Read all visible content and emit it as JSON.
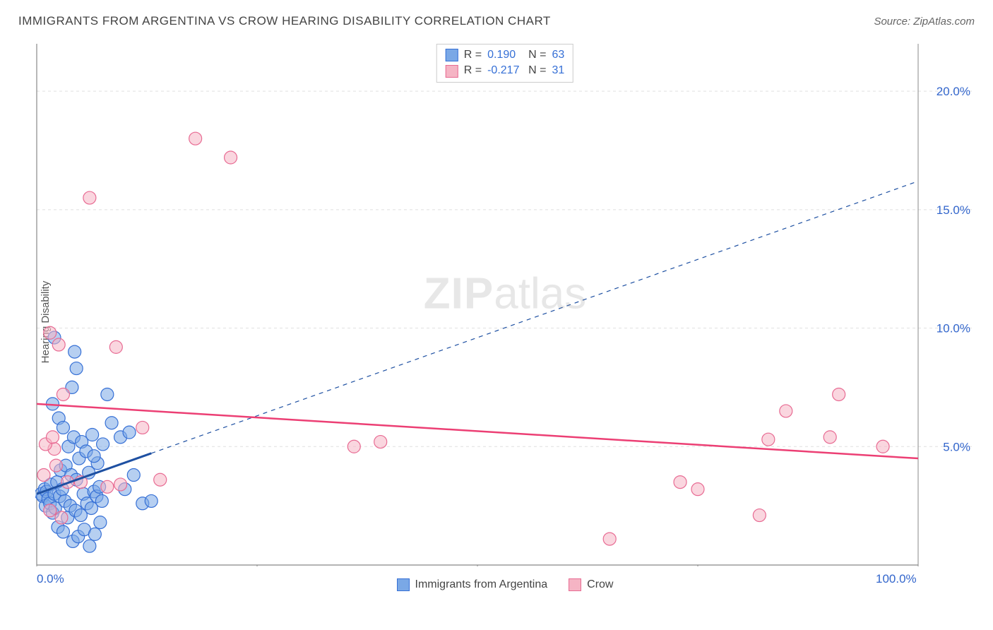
{
  "title": "IMMIGRANTS FROM ARGENTINA VS CROW HEARING DISABILITY CORRELATION CHART",
  "source": "Source: ZipAtlas.com",
  "watermark": {
    "zip": "ZIP",
    "atlas": "atlas"
  },
  "y_axis_label": "Hearing Disability",
  "chart": {
    "type": "scatter",
    "xlim": [
      0,
      100
    ],
    "ylim": [
      0,
      22
    ],
    "x_ticks": [
      0,
      25,
      50,
      75,
      100
    ],
    "x_tick_labels": {
      "0": "0.0%",
      "100": "100.0%"
    },
    "y_ticks": [
      5,
      10,
      15,
      20
    ],
    "y_tick_labels": {
      "5": "5.0%",
      "10": "10.0%",
      "15": "15.0%",
      "20": "20.0%"
    },
    "grid_color": "#e0e0e0",
    "grid_dash": "4 4",
    "axis_line_color": "#888888",
    "tick_label_color": "#3366cc",
    "tick_label_fontsize": 17,
    "background_color": "#ffffff",
    "marker_radius": 9,
    "marker_opacity": 0.55,
    "series": [
      {
        "name": "Immigrants from Argentina",
        "color": "#7aa8e6",
        "stroke": "#3670d6",
        "R": "0.190",
        "N": "63",
        "trend": {
          "x1": 0,
          "y1": 3.0,
          "x2": 100,
          "y2": 16.2,
          "solid_until_x": 13,
          "color": "#1e50a2",
          "width": 2
        },
        "points": [
          [
            0.5,
            3.0
          ],
          [
            0.7,
            2.9
          ],
          [
            0.9,
            3.2
          ],
          [
            1.0,
            2.5
          ],
          [
            1.1,
            3.1
          ],
          [
            1.3,
            2.8
          ],
          [
            1.5,
            2.6
          ],
          [
            1.6,
            3.4
          ],
          [
            1.8,
            2.2
          ],
          [
            2.0,
            3.0
          ],
          [
            2.1,
            2.4
          ],
          [
            2.3,
            3.5
          ],
          [
            2.4,
            1.6
          ],
          [
            2.6,
            2.9
          ],
          [
            2.7,
            4.0
          ],
          [
            2.9,
            3.2
          ],
          [
            3.0,
            1.4
          ],
          [
            3.2,
            2.7
          ],
          [
            3.3,
            4.2
          ],
          [
            3.5,
            2.0
          ],
          [
            3.6,
            5.0
          ],
          [
            3.8,
            2.5
          ],
          [
            3.9,
            3.8
          ],
          [
            4.1,
            1.0
          ],
          [
            4.2,
            5.4
          ],
          [
            4.4,
            2.3
          ],
          [
            4.5,
            3.6
          ],
          [
            4.7,
            1.2
          ],
          [
            4.8,
            4.5
          ],
          [
            5.0,
            2.1
          ],
          [
            5.1,
            5.2
          ],
          [
            5.3,
            3.0
          ],
          [
            5.4,
            1.5
          ],
          [
            5.6,
            4.8
          ],
          [
            5.7,
            2.6
          ],
          [
            5.9,
            3.9
          ],
          [
            6.0,
            0.8
          ],
          [
            6.2,
            2.4
          ],
          [
            6.3,
            5.5
          ],
          [
            6.5,
            3.1
          ],
          [
            6.6,
            1.3
          ],
          [
            6.8,
            2.9
          ],
          [
            6.9,
            4.3
          ],
          [
            7.1,
            3.3
          ],
          [
            7.2,
            1.8
          ],
          [
            7.4,
            2.7
          ],
          [
            7.5,
            5.1
          ],
          [
            4.0,
            7.5
          ],
          [
            4.5,
            8.3
          ],
          [
            4.3,
            9.0
          ],
          [
            2.0,
            9.6
          ],
          [
            8.0,
            7.2
          ],
          [
            8.5,
            6.0
          ],
          [
            9.5,
            5.4
          ],
          [
            10.0,
            3.2
          ],
          [
            10.5,
            5.6
          ],
          [
            11.0,
            3.8
          ],
          [
            12.0,
            2.6
          ],
          [
            13.0,
            2.7
          ],
          [
            1.8,
            6.8
          ],
          [
            2.5,
            6.2
          ],
          [
            3.0,
            5.8
          ],
          [
            6.5,
            4.6
          ]
        ]
      },
      {
        "name": "Crow",
        "color": "#f5b4c4",
        "stroke": "#e86b93",
        "R": "-0.217",
        "N": "31",
        "trend": {
          "x1": 0,
          "y1": 6.8,
          "x2": 100,
          "y2": 4.5,
          "solid_until_x": 100,
          "color": "#ec3f74",
          "width": 2.5
        },
        "points": [
          [
            1.5,
            9.8
          ],
          [
            2.5,
            9.3
          ],
          [
            3.0,
            7.2
          ],
          [
            2.0,
            4.9
          ],
          [
            1.0,
            5.1
          ],
          [
            1.8,
            5.4
          ],
          [
            2.2,
            4.2
          ],
          [
            3.5,
            3.5
          ],
          [
            0.8,
            3.8
          ],
          [
            1.5,
            2.3
          ],
          [
            2.8,
            2.0
          ],
          [
            5.0,
            3.5
          ],
          [
            8.0,
            3.3
          ],
          [
            9.5,
            3.4
          ],
          [
            12.0,
            5.8
          ],
          [
            14.0,
            3.6
          ],
          [
            9.0,
            9.2
          ],
          [
            6.0,
            15.5
          ],
          [
            22.0,
            17.2
          ],
          [
            18.0,
            18.0
          ],
          [
            36.0,
            5.0
          ],
          [
            39.0,
            5.2
          ],
          [
            65.0,
            1.1
          ],
          [
            73.0,
            3.5
          ],
          [
            82.0,
            2.1
          ],
          [
            83.0,
            5.3
          ],
          [
            85.0,
            6.5
          ],
          [
            90.0,
            5.4
          ],
          [
            91.0,
            7.2
          ],
          [
            96.0,
            5.0
          ],
          [
            75.0,
            3.2
          ]
        ]
      }
    ],
    "legend": {
      "swatch_size": 18
    },
    "stats_box": {
      "labels": {
        "R": "R =",
        "N": "N ="
      }
    }
  }
}
